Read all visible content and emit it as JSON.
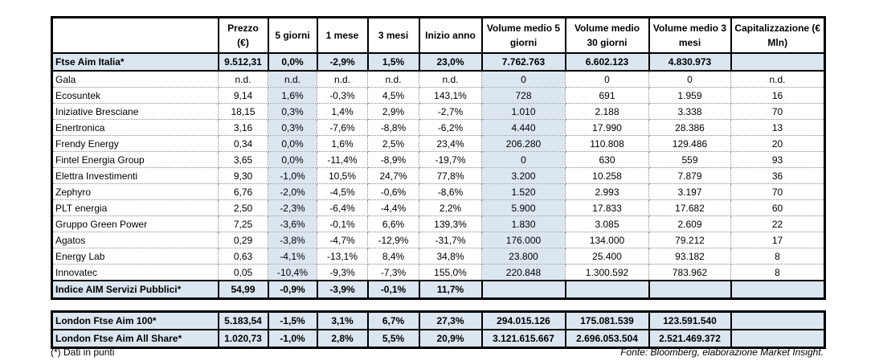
{
  "headers": [
    "",
    "Prezzo (€)",
    "5 giorni",
    "1 mese",
    "3 mesi",
    "Inizio anno",
    "Volume medio 5 giorni",
    "Volume medio 30 giorni",
    "Volume medio 3 mesi",
    "Capitalizzazione (€ Mln)"
  ],
  "index_top": [
    "Ftse Aim Italia*",
    "9.512,31",
    "0,0%",
    "-2,9%",
    "1,5%",
    "23,0%",
    "7.762.763",
    "6.602.123",
    "4.830.973",
    ""
  ],
  "rows": [
    [
      "Gala",
      "n.d.",
      "n.d.",
      "n.d.",
      "n.d.",
      "n.d.",
      "0",
      "0",
      "0",
      "n.d."
    ],
    [
      "Ecosuntek",
      "9,14",
      "1,6%",
      "-0,3%",
      "4,5%",
      "143,1%",
      "728",
      "691",
      "1.959",
      "16"
    ],
    [
      "Iniziative Bresciane",
      "18,15",
      "0,3%",
      "1,4%",
      "2,9%",
      "-2,7%",
      "1.010",
      "2.188",
      "3.338",
      "70"
    ],
    [
      "Enertronica",
      "3,16",
      "0,3%",
      "-7,6%",
      "-8,8%",
      "-6,2%",
      "4.440",
      "17.990",
      "28.386",
      "13"
    ],
    [
      "Frendy Energy",
      "0,34",
      "0,0%",
      "1,6%",
      "2,5%",
      "23,4%",
      "206.280",
      "110.808",
      "129.486",
      "20"
    ],
    [
      "Fintel Energia Group",
      "3,65",
      "0,0%",
      "-11,4%",
      "-8,9%",
      "-19,7%",
      "0",
      "630",
      "559",
      "93"
    ],
    [
      "Elettra Investimenti",
      "9,30",
      "-1,0%",
      "10,5%",
      "24,7%",
      "77,8%",
      "3.200",
      "10.258",
      "7.879",
      "36"
    ],
    [
      "Zephyro",
      "6,76",
      "-2,0%",
      "-4,5%",
      "-0,6%",
      "-8,6%",
      "1.520",
      "2.993",
      "3.197",
      "70"
    ],
    [
      "PLT energia",
      "2,50",
      "-2,3%",
      "-6,4%",
      "-4,4%",
      "2,2%",
      "5.900",
      "17.833",
      "17.682",
      "60"
    ],
    [
      "Gruppo Green Power",
      "7,25",
      "-3,6%",
      "-0,1%",
      "6,6%",
      "139,3%",
      "1.830",
      "3.085",
      "2.609",
      "22"
    ],
    [
      "Agatos",
      "0,29",
      "-3,8%",
      "-4,7%",
      "-12,9%",
      "-31,7%",
      "176.000",
      "134.000",
      "79.212",
      "17"
    ],
    [
      "Energy Lab",
      "0,63",
      "-4,1%",
      "-13,1%",
      "8,4%",
      "34,8%",
      "23.800",
      "25.400",
      "93.182",
      "8"
    ],
    [
      "Innovatec",
      "0,05",
      "-10,4%",
      "-9,3%",
      "-7,3%",
      "155,0%",
      "220.848",
      "1.300.592",
      "783.962",
      "8"
    ]
  ],
  "index_bottom": [
    "Indice AIM Servizi Pubblici*",
    "54,99",
    "-0,9%",
    "-3,9%",
    "-0,1%",
    "11,7%",
    "",
    "",
    "",
    ""
  ],
  "london": [
    [
      "London Ftse Aim 100*",
      "5.183,54",
      "-1,5%",
      "3,1%",
      "6,7%",
      "27,3%",
      "294.015.126",
      "175.081.539",
      "123.591.540",
      ""
    ],
    [
      "London Ftse Aim All Share*",
      "1.020,73",
      "-1,0%",
      "2,8%",
      "5,5%",
      "20,9%",
      "3.121.615.667",
      "2.696.053.504",
      "2.521.469.372",
      ""
    ]
  ],
  "footnote": "(*) Dati in punti",
  "source": "Fonte: Bloomberg, elaborazione Market Insight."
}
